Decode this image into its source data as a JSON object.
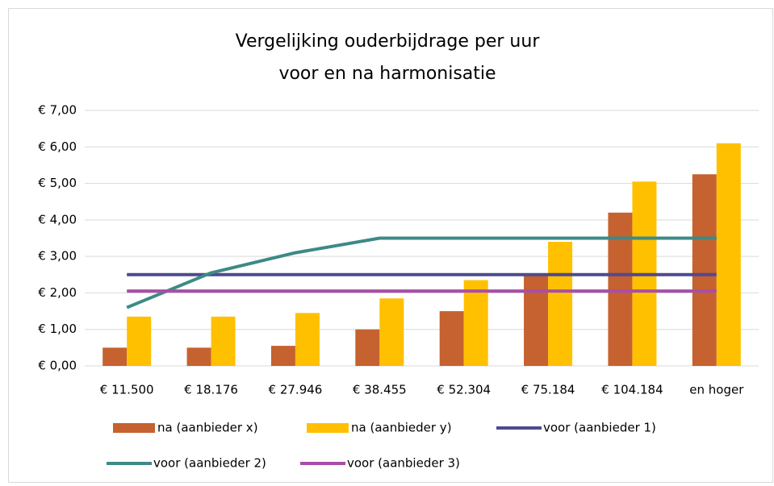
{
  "chart_data": {
    "type": "bar",
    "title": [
      "Vergelijking ouderbijdrage per uur",
      "voor en na harmonisatie"
    ],
    "categories": [
      "€ 11.500",
      "€ 18.176",
      "€ 27.946",
      "€ 38.455",
      "€ 52.304",
      "€ 75.184",
      "€ 104.184",
      "en hoger"
    ],
    "series": [
      {
        "name": "na (aanbieder x)",
        "type": "bar",
        "color": "#c5622f",
        "values": [
          0.5,
          0.5,
          0.55,
          1.0,
          1.5,
          2.5,
          4.2,
          5.25
        ]
      },
      {
        "name": "na (aanbieder y)",
        "type": "bar",
        "color": "#ffc000",
        "values": [
          1.35,
          1.35,
          1.45,
          1.85,
          2.35,
          3.4,
          5.05,
          6.1
        ]
      },
      {
        "name": "voor (aanbieder 1)",
        "type": "line",
        "color": "#4e4a8e",
        "values": [
          2.5,
          2.5,
          2.5,
          2.5,
          2.5,
          2.5,
          2.5,
          2.5
        ]
      },
      {
        "name": "voor (aanbieder 2)",
        "type": "line",
        "color": "#3d8a86",
        "values": [
          1.6,
          2.55,
          3.1,
          3.5,
          3.5,
          3.5,
          3.5,
          3.5
        ]
      },
      {
        "name": "voor (aanbieder 3)",
        "type": "line",
        "color": "#a94ea8",
        "values": [
          2.05,
          2.05,
          2.05,
          2.05,
          2.05,
          2.05,
          2.05,
          2.05
        ]
      }
    ],
    "ylim": [
      0,
      7
    ],
    "yticks": [
      {
        "value": 0,
        "label": "€ 0,00"
      },
      {
        "value": 1,
        "label": "€ 1,00"
      },
      {
        "value": 2,
        "label": "€ 2,00"
      },
      {
        "value": 3,
        "label": "€ 3,00"
      },
      {
        "value": 4,
        "label": "€ 4,00"
      },
      {
        "value": 5,
        "label": "€ 5,00"
      },
      {
        "value": 6,
        "label": "€ 6,00"
      },
      {
        "value": 7,
        "label": "€ 7,00"
      }
    ],
    "grid": true,
    "legend": "bottom"
  }
}
